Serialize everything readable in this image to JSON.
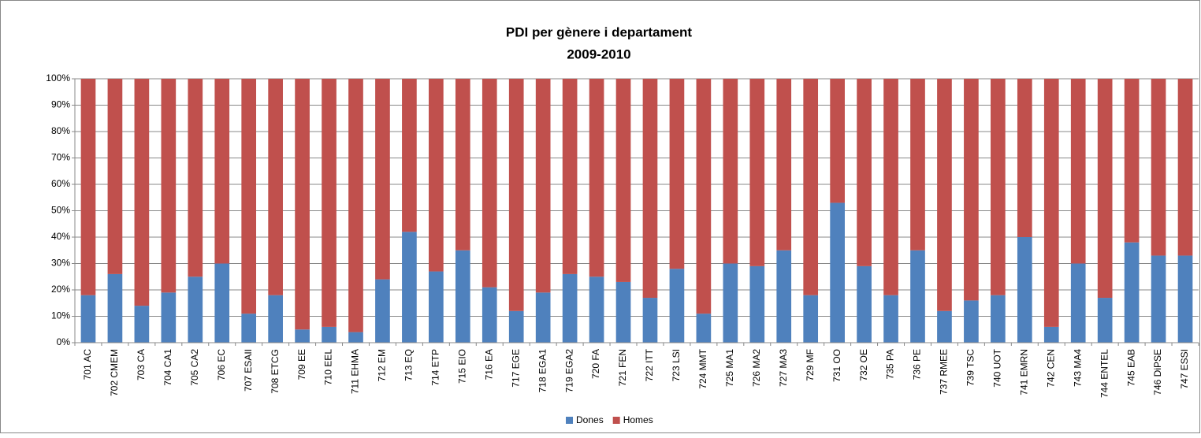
{
  "chart_data": {
    "type": "stacked_bar_100",
    "title": "PDI per gènere i departament",
    "subtitle": "2009-2010",
    "categories": [
      "701 AC",
      "702 CMEM",
      "703 CA",
      "704 CA1",
      "705 CA2",
      "706 EC",
      "707 ESAII",
      "708 ETCG",
      "709 EE",
      "710 EEL",
      "711 EHMA",
      "712 EM",
      "713 EQ",
      "714 ETP",
      "715 EIO",
      "716 EA",
      "717 EGE",
      "718 EGA1",
      "719 EGA2",
      "720 FA",
      "721 FEN",
      "722 ITT",
      "723 LSI",
      "724 MMT",
      "725 MA1",
      "726 MA2",
      "727 MA3",
      "729 MF",
      "731 OO",
      "732 OE",
      "735 PA",
      "736 PE",
      "737 RMEE",
      "739 TSC",
      "740 UOT",
      "741 EMRN",
      "742 CEN",
      "743 MA4",
      "744 ENTEL",
      "745 EAB",
      "746 DiPSE",
      "747 ESSI"
    ],
    "series": [
      {
        "name": "Dones",
        "color": "#4f81bd",
        "values": [
          18,
          26,
          14,
          19,
          25,
          30,
          11,
          18,
          5,
          6,
          4,
          24,
          42,
          27,
          35,
          21,
          12,
          19,
          26,
          25,
          23,
          17,
          28,
          11,
          30,
          29,
          35,
          18,
          53,
          29,
          18,
          35,
          12,
          16,
          18,
          40,
          6,
          30,
          17,
          38,
          33,
          33
        ]
      },
      {
        "name": "Homes",
        "color": "#c0504d",
        "values": [
          82,
          74,
          86,
          81,
          75,
          70,
          89,
          82,
          95,
          94,
          96,
          76,
          58,
          73,
          65,
          79,
          88,
          81,
          74,
          75,
          77,
          83,
          72,
          89,
          70,
          71,
          65,
          82,
          47,
          71,
          82,
          65,
          88,
          84,
          82,
          60,
          94,
          70,
          83,
          62,
          67,
          67
        ]
      }
    ],
    "ylim": [
      0,
      100
    ],
    "yticks": [
      {
        "value": 0,
        "label": "0%"
      },
      {
        "value": 10,
        "label": "10%"
      },
      {
        "value": 20,
        "label": "20%"
      },
      {
        "value": 30,
        "label": "30%"
      },
      {
        "value": 40,
        "label": "40%"
      },
      {
        "value": 50,
        "label": "50%"
      },
      {
        "value": 60,
        "label": "60%"
      },
      {
        "value": 70,
        "label": "70%"
      },
      {
        "value": 80,
        "label": "80%"
      },
      {
        "value": 90,
        "label": "90%"
      },
      {
        "value": 100,
        "label": "100%"
      }
    ],
    "grid": true,
    "legend": "bottom"
  }
}
